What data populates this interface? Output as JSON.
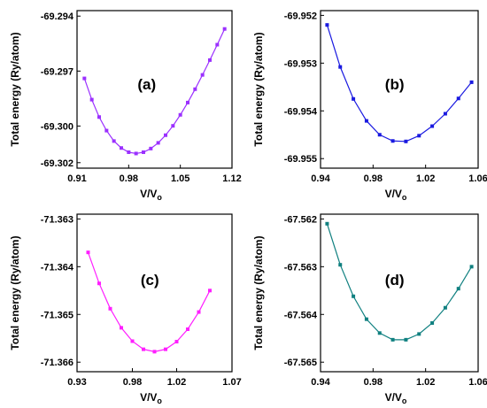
{
  "chart_data": [
    {
      "type": "line",
      "annotation": "(a)",
      "y_label": "Total energy (Ry/atom)",
      "x_label": "V/V",
      "x_label_sub": "o",
      "xlim": [
        0.91,
        1.12
      ],
      "xticks": [
        0.91,
        0.98,
        1.05,
        1.12
      ],
      "ylim": [
        -69.3023,
        -69.2937
      ],
      "yticks": [
        -69.302,
        {
          "value": -69.3,
          "label": "-69.300"
        },
        -69.297,
        -69.294
      ],
      "series": [
        {
          "color": "#9b30ff",
          "x": [
            0.92,
            0.93,
            0.94,
            0.95,
            0.96,
            0.97,
            0.98,
            0.99,
            1.0,
            1.01,
            1.02,
            1.03,
            1.04,
            1.05,
            1.06,
            1.07,
            1.08,
            1.09,
            1.1,
            1.11
          ],
          "values": [
            -69.2974,
            -69.29856,
            -69.29951,
            -69.30025,
            -69.30082,
            -69.3012,
            -69.30143,
            -69.3015,
            -69.30143,
            -69.30123,
            -69.30092,
            -69.3005,
            -69.29999,
            -69.29939,
            -69.29872,
            -69.29799,
            -69.29721,
            -69.2964,
            -69.29556,
            -69.2947
          ]
        }
      ]
    },
    {
      "type": "line",
      "annotation": "(b)",
      "y_label": "Total energy (Ry/atom)",
      "x_label": "V/V",
      "x_label_sub": "o",
      "xlim": [
        0.94,
        1.06
      ],
      "xticks": [
        0.94,
        0.98,
        1.02,
        1.06
      ],
      "ylim": [
        -69.9552,
        -69.9519
      ],
      "yticks": [
        -69.955,
        -69.954,
        -69.953,
        -69.952
      ],
      "series": [
        {
          "color": "#1a1ae0",
          "x": [
            0.945,
            0.955,
            0.965,
            0.975,
            0.985,
            0.995,
            1.005,
            1.015,
            1.025,
            1.035,
            1.045,
            1.055
          ],
          "values": [
            -69.9522,
            -69.95308,
            -69.95375,
            -69.95421,
            -69.9545,
            -69.95463,
            -69.95464,
            -69.95452,
            -69.95432,
            -69.95406,
            -69.95374,
            -69.9534
          ]
        }
      ]
    },
    {
      "type": "line",
      "annotation": "(c)",
      "y_label": "Total energy (Ry/atom)",
      "x_label": "V/V",
      "x_label_sub": "o",
      "xlim": [
        0.93,
        1.07
      ],
      "xticks": [
        0.93,
        0.98,
        1.02,
        1.07
      ],
      "ylim": [
        -71.3662,
        -71.3629
      ],
      "yticks": [
        -71.366,
        -71.365,
        -71.364,
        -71.363
      ],
      "series": [
        {
          "color": "#ff1fff",
          "x": [
            0.94,
            0.95,
            0.96,
            0.97,
            0.98,
            0.99,
            1.0,
            1.01,
            1.02,
            1.03,
            1.04,
            1.05
          ],
          "values": [
            -71.3637,
            -71.36435,
            -71.36488,
            -71.36528,
            -71.36556,
            -71.36573,
            -71.36578,
            -71.36573,
            -71.36557,
            -71.36531,
            -71.36495,
            -71.3645
          ]
        }
      ]
    },
    {
      "type": "line",
      "annotation": "(d)",
      "y_label": "Total energy (Ry/atom)",
      "x_label": "V/V",
      "x_label_sub": "o",
      "xlim": [
        0.94,
        1.06
      ],
      "xticks": [
        0.94,
        0.98,
        1.02,
        1.06
      ],
      "ylim": [
        -67.5652,
        -67.5619
      ],
      "yticks": [
        -67.565,
        -67.564,
        -67.563,
        -67.562
      ],
      "series": [
        {
          "color": "#108080",
          "x": [
            0.945,
            0.955,
            0.965,
            0.975,
            0.985,
            0.995,
            1.005,
            1.015,
            1.025,
            1.035,
            1.045,
            1.055
          ],
          "values": [
            -67.5621,
            -67.56296,
            -67.56362,
            -67.5641,
            -67.56439,
            -67.56453,
            -67.56453,
            -67.56441,
            -67.56418,
            -67.56386,
            -67.56346,
            -67.563
          ]
        }
      ]
    }
  ]
}
